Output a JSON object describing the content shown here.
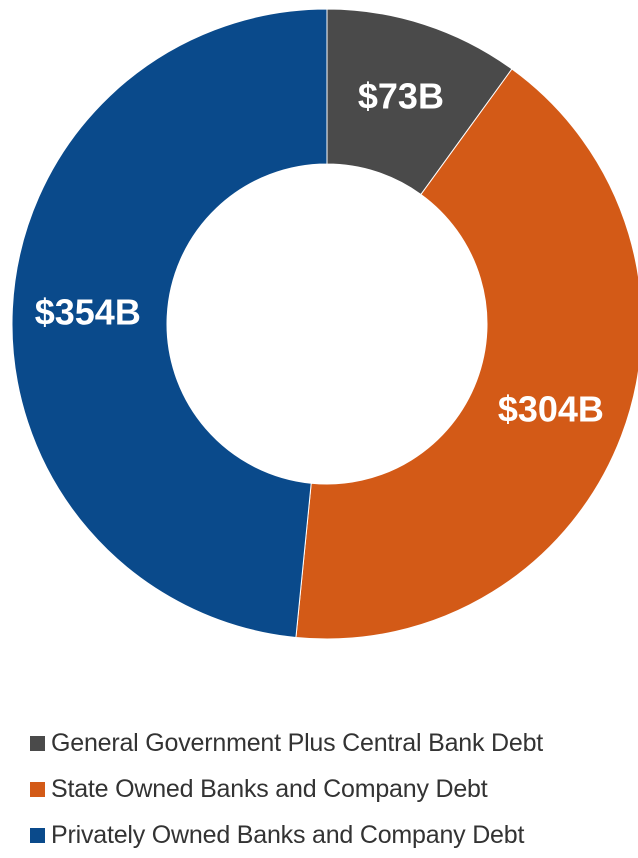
{
  "chart_data": {
    "type": "pie",
    "title": "",
    "categories": [
      "General Government Plus Central Bank Debt",
      "State Owned Banks and Company Debt",
      "Privately Owned Banks and Company Debt"
    ],
    "values": [
      73,
      304,
      354
    ],
    "labels": [
      "$73B",
      "$304B",
      "$354B"
    ],
    "units": "$B",
    "donut": true,
    "start_angle": "top",
    "direction": "clockwise",
    "legend_position": "bottom",
    "colors": [
      "#4a4a4a",
      "#d35a17",
      "#0a4a8b"
    ]
  }
}
